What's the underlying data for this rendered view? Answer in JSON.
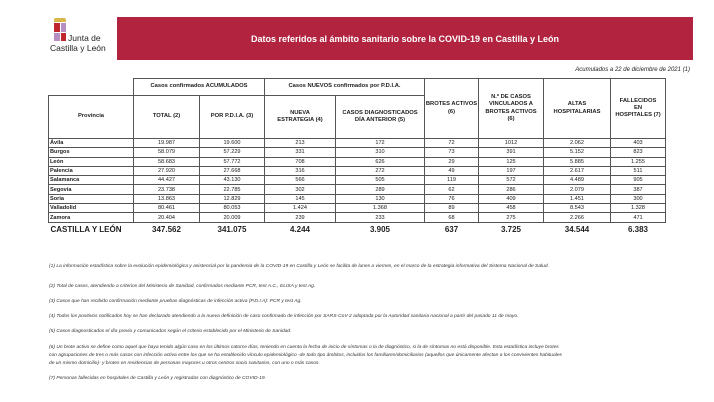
{
  "logo": {
    "line1": "Junta de",
    "line2": "Castilla y León"
  },
  "header": {
    "title": "Datos referidos al ámbito sanitario sobre la COVID-19 en Castilla y León"
  },
  "subtitle": "Acumulados a 22 de diciembre de 2021 (1)",
  "table": {
    "group_acumulados": "Casos confirmados ACUMULADOS",
    "group_nuevos": "Casos NUEVOS confirmados por P.D.I.A.",
    "columns": [
      "Provincia",
      "TOTAL (2)",
      "POR P.D.I.A. (3)",
      "NUEVA ESTRATEGIA (4)",
      "CASOS DIAGNOSTICADOS DÍA ANTERIOR (5)",
      "BROTES ACTIVOS (6)",
      "N.º DE CASOS VINCULADOS A BROTES ACTIVOS (6)",
      "ALTAS HOSPITALARIAS",
      "FALLECIDOS EN HOSPITALES (7)"
    ],
    "rows": [
      [
        "Ávila",
        "19.987",
        "19.600",
        "213",
        "172",
        "72",
        "1012",
        "2.062",
        "403"
      ],
      [
        "Burgos",
        "58.079",
        "57.229",
        "331",
        "310",
        "73",
        "391",
        "5.152",
        "823"
      ],
      [
        "León",
        "58.683",
        "57.772",
        "708",
        "626",
        "29",
        "125",
        "5.885",
        "1.255"
      ],
      [
        "Palencia",
        "27.920",
        "27.668",
        "316",
        "272",
        "49",
        "197",
        "2.617",
        "511"
      ],
      [
        "Salamanca",
        "44.427",
        "43.130",
        "566",
        "505",
        "119",
        "572",
        "4.489",
        "905"
      ],
      [
        "Segovia",
        "23.738",
        "22.785",
        "302",
        "289",
        "62",
        "286",
        "2.079",
        "387"
      ],
      [
        "Soria",
        "13.863",
        "12.829",
        "145",
        "130",
        "76",
        "409",
        "1.451",
        "300"
      ],
      [
        "Valladolid",
        "80.461",
        "80.053",
        "1.424",
        "1.368",
        "89",
        "458",
        "8.543",
        "1.328"
      ],
      [
        "Zamora",
        "20.404",
        "20.009",
        "239",
        "233",
        "68",
        "275",
        "2.266",
        "471"
      ]
    ],
    "total": [
      "CASTILLA Y LEÓN",
      "347.562",
      "341.075",
      "4.244",
      "3.905",
      "637",
      "3.725",
      "34.544",
      "6.383"
    ]
  },
  "notes": [
    "(1) La información estadística sobre la evolución epidemiológica y asistencial por la pandemia de la COVID-19 en Castilla y León se facilita de lunes a viernes, en el marco de la estrategia informativa del Sistema Nacional de Salud.",
    "(2) Total de casos, atendiendo a criterios del Ministerio de Sanidad, confirmados mediante PCR, test A.C., ELISA y test Ag.",
    "(3) Casos que han recibido confirmación mediante pruebas diagnósticas de infección activa (P.D.I.A): PCR y test Ag.",
    "(4) Todos los positivos notificados hoy se han declarado atendiendo a la nueva definición de caso confirmado de infección por SARS-CoV-2 adoptada por la Autoridad sanitaria nacional a partir del pasado 11 de mayo.",
    "(5) Casos diagnosticados el día previo y comunicados según el criterio establecido por el Ministerio de Sanidad.",
    "(6) Un brote activo se define como aquel que haya tenido algún caso en los últimos catorce días, teniendo en cuenta la fecha de inicio de síntomas o la de diagnóstico, si la de síntomas no está disponible. Esta estadística incluye brotes",
    "con agrupaciones de tres o más casos con infección activa entre los que se ha establecido vínculo epidemiológico -de todo tipo ámbitos, incluidos los familiares/domiciliarios (aquellos que únicamente afectan a los convivientes habituales",
    "de un mismo domicilio)- y brotes en residencias de personas mayores u otros centros socio sanitarios, con uno o más casos.",
    "(7) Personas fallecidas en hospitales de Castilla y León y registradas con diagnóstico de COVID-19."
  ]
}
